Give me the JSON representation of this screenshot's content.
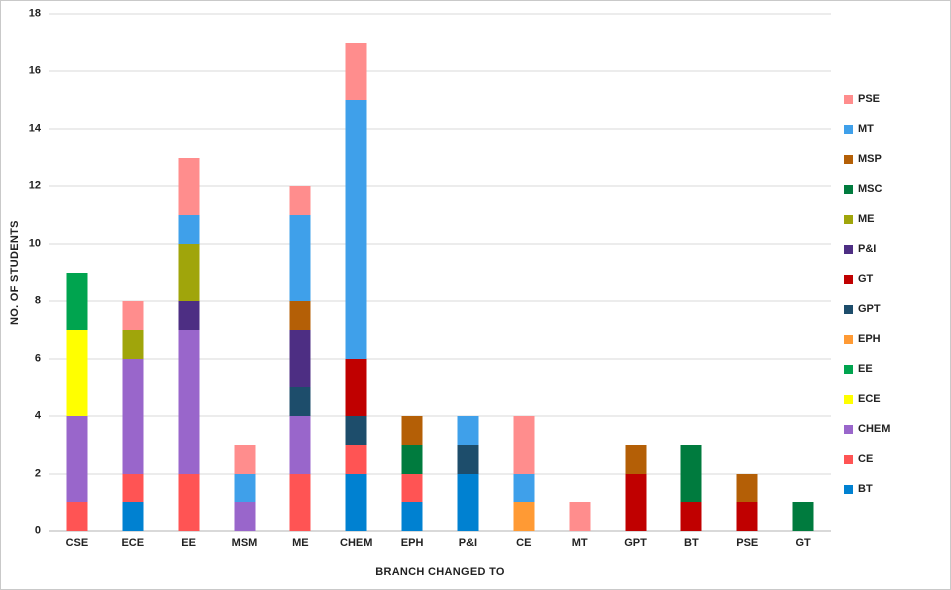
{
  "chart_data": {
    "type": "bar",
    "stacked": true,
    "title": "",
    "xlabel": "BRANCH CHANGED TO",
    "ylabel": "NO. OF STUDENTS",
    "ylim": [
      0,
      18
    ],
    "ytick_step": 2,
    "grid": true,
    "legend_position": "right",
    "categories": [
      "CSE",
      "ECE",
      "EE",
      "MSM",
      "ME",
      "CHEM",
      "EPH",
      "P&I",
      "CE",
      "MT",
      "GPT",
      "BT",
      "PSE",
      "GT"
    ],
    "series": [
      {
        "name": "BT",
        "color": "#0081D1",
        "values": [
          0,
          1,
          0,
          0,
          0,
          2,
          1,
          2,
          0,
          0,
          0,
          0,
          0,
          0
        ]
      },
      {
        "name": "CE",
        "color": "#FF5454",
        "values": [
          1,
          1,
          2,
          0,
          2,
          1,
          1,
          0,
          0,
          0,
          0,
          0,
          0,
          0
        ]
      },
      {
        "name": "CHEM",
        "color": "#9966CB",
        "values": [
          3,
          4,
          5,
          1,
          2,
          0,
          0,
          0,
          0,
          0,
          0,
          0,
          0,
          0
        ]
      },
      {
        "name": "ECE",
        "color": "#FFFF00",
        "values": [
          3,
          0,
          0,
          0,
          0,
          0,
          0,
          0,
          0,
          0,
          0,
          0,
          0,
          0
        ]
      },
      {
        "name": "EE",
        "color": "#00A44F",
        "values": [
          2,
          0,
          0,
          0,
          0,
          0,
          0,
          0,
          0,
          0,
          0,
          0,
          0,
          0
        ]
      },
      {
        "name": "EPH",
        "color": "#FF9A34",
        "values": [
          0,
          0,
          0,
          0,
          0,
          0,
          0,
          0,
          1,
          0,
          0,
          0,
          0,
          0
        ]
      },
      {
        "name": "GPT",
        "color": "#1D4D6B",
        "values": [
          0,
          0,
          0,
          0,
          1,
          1,
          0,
          1,
          0,
          0,
          0,
          0,
          0,
          0
        ]
      },
      {
        "name": "GT",
        "color": "#C00000",
        "values": [
          0,
          0,
          0,
          0,
          0,
          2,
          0,
          0,
          0,
          0,
          2,
          1,
          1,
          0
        ]
      },
      {
        "name": "P&I",
        "color": "#4D2E83",
        "values": [
          0,
          0,
          1,
          0,
          2,
          0,
          0,
          0,
          0,
          0,
          0,
          0,
          0,
          0
        ]
      },
      {
        "name": "ME",
        "color": "#A0A50B",
        "values": [
          0,
          1,
          2,
          0,
          0,
          0,
          0,
          0,
          0,
          0,
          0,
          0,
          0,
          0
        ]
      },
      {
        "name": "MSC",
        "color": "#007B3E",
        "values": [
          0,
          0,
          0,
          0,
          0,
          0,
          1,
          0,
          0,
          0,
          0,
          2,
          0,
          1
        ]
      },
      {
        "name": "MSP",
        "color": "#B45F06",
        "values": [
          0,
          0,
          0,
          0,
          1,
          0,
          1,
          0,
          0,
          0,
          1,
          0,
          1,
          0
        ]
      },
      {
        "name": "MT",
        "color": "#3FA0EA",
        "values": [
          0,
          0,
          1,
          1,
          3,
          9,
          0,
          1,
          1,
          0,
          0,
          0,
          0,
          0
        ]
      },
      {
        "name": "PSE",
        "color": "#FF8D8D",
        "values": [
          0,
          1,
          2,
          1,
          1,
          2,
          0,
          0,
          2,
          1,
          0,
          0,
          0,
          0
        ]
      }
    ],
    "legend_order": [
      "PSE",
      "MT",
      "MSP",
      "MSC",
      "ME",
      "P&I",
      "GT",
      "GPT",
      "EPH",
      "EE",
      "ECE",
      "CHEM",
      "CE",
      "BT"
    ],
    "colors": {
      "gridline": "#d9d9d9",
      "axis_line": "#b3b3b3",
      "text": "#222222"
    }
  }
}
